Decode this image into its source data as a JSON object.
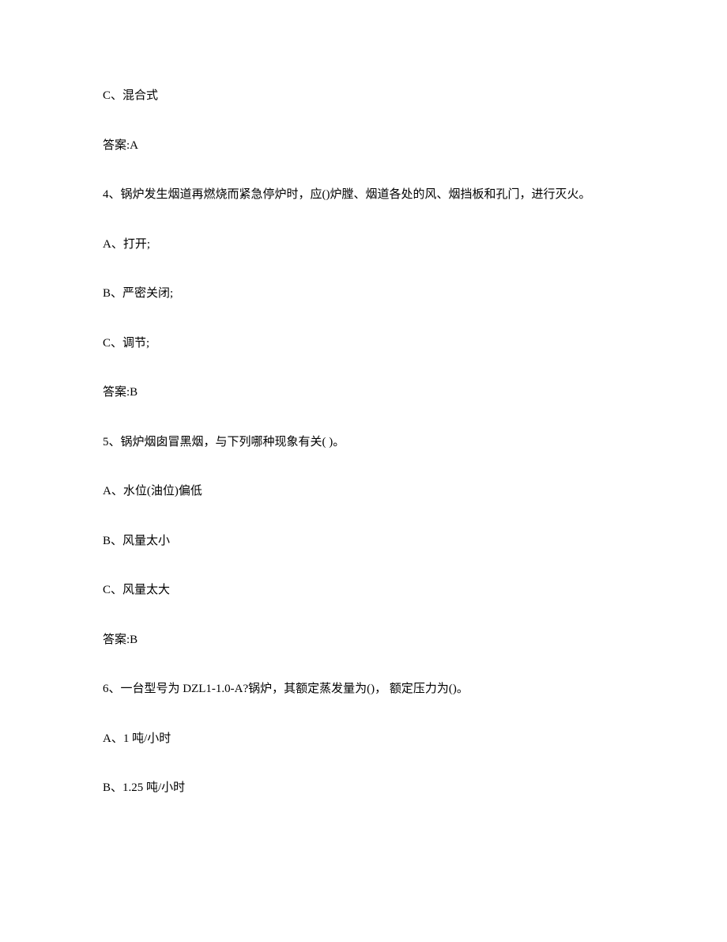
{
  "document": {
    "background_color": "#ffffff",
    "text_color": "#000000",
    "font_family": "SimSun",
    "font_size": 15,
    "line_spacing": 40,
    "items": [
      {
        "type": "option",
        "text": "C、混合式"
      },
      {
        "type": "answer",
        "text": "答案:A"
      },
      {
        "type": "question",
        "text": "4、锅炉发生烟道再燃烧而紧急停炉时，应()炉膛、烟道各处的风、烟挡板和孔门，进行灭火。"
      },
      {
        "type": "option",
        "text": "A、打开;"
      },
      {
        "type": "option",
        "text": "B、严密关闭;"
      },
      {
        "type": "option",
        "text": "C、调节;"
      },
      {
        "type": "answer",
        "text": "答案:B"
      },
      {
        "type": "question",
        "text": "5、锅炉烟囱冒黑烟，与下列哪种现象有关( )。"
      },
      {
        "type": "option",
        "text": "A、水位(油位)偏低"
      },
      {
        "type": "option",
        "text": "B、风量太小"
      },
      {
        "type": "option",
        "text": "C、风量太大"
      },
      {
        "type": "answer",
        "text": "答案:B"
      },
      {
        "type": "question",
        "text": "6、一台型号为 DZL1-1.0-A?锅炉，其额定蒸发量为()， 额定压力为()。"
      },
      {
        "type": "option",
        "text": "A、1 吨/小时"
      },
      {
        "type": "option",
        "text": "B、1.25 吨/小时"
      }
    ]
  }
}
